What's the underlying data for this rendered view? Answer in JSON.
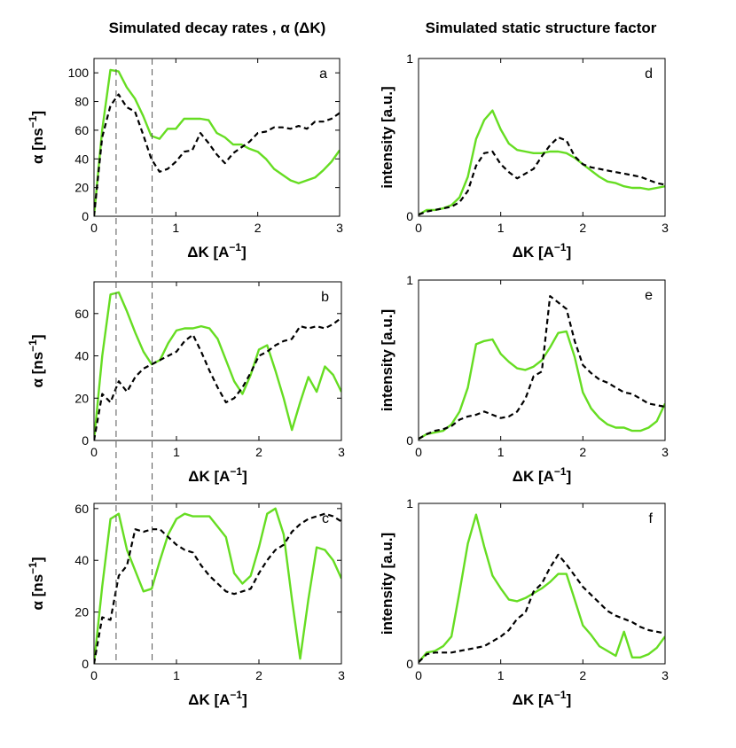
{
  "figure": {
    "left_title": "Simulated decay rates , α (ΔK)",
    "right_title": "Simulated static structure factor",
    "xlabel_prefix": "ΔK [A",
    "xlabel_sup": "−1",
    "xlabel_suffix": "]",
    "ylabel_alpha_prefix": "α [ns",
    "ylabel_alpha_sup": "−1",
    "ylabel_alpha_suffix": "]",
    "ylabel_intensity": "intensity [a.u.]",
    "colors": {
      "green": "#66dd22",
      "black": "#000000",
      "guide": "#555555"
    },
    "guide_lines_x": [
      0.27,
      0.71
    ]
  },
  "chart_data": [
    {
      "id": "a",
      "label": "a",
      "type": "line",
      "xlim": [
        0,
        3
      ],
      "ylim": [
        0,
        110
      ],
      "xticks": [
        0,
        1,
        2,
        3
      ],
      "xtick_labels": [
        "0",
        "1",
        "2",
        "3"
      ],
      "yticks": [
        0,
        20,
        40,
        60,
        80,
        100
      ],
      "ytick_labels": [
        "0",
        "20",
        "40",
        "60",
        "80",
        "100"
      ],
      "ylabel": "alpha",
      "series": [
        {
          "name": "green",
          "color": "#66dd22",
          "style": "solid",
          "x": [
            0,
            0.1,
            0.2,
            0.3,
            0.4,
            0.5,
            0.6,
            0.7,
            0.8,
            0.9,
            1.0,
            1.1,
            1.2,
            1.3,
            1.4,
            1.5,
            1.6,
            1.7,
            1.8,
            1.9,
            2.0,
            2.1,
            2.2,
            2.3,
            2.4,
            2.5,
            2.6,
            2.7,
            2.8,
            2.9,
            3.0
          ],
          "y": [
            0,
            60,
            102,
            101,
            90,
            82,
            70,
            56,
            54,
            61,
            61,
            68,
            68,
            68,
            67,
            58,
            55,
            50,
            50,
            47,
            45,
            40,
            33,
            29,
            25,
            23,
            25,
            27,
            32,
            38,
            46
          ]
        },
        {
          "name": "black",
          "color": "#000000",
          "style": "dashed",
          "x": [
            0,
            0.1,
            0.2,
            0.3,
            0.4,
            0.5,
            0.6,
            0.7,
            0.8,
            0.9,
            1.0,
            1.1,
            1.2,
            1.3,
            1.4,
            1.5,
            1.6,
            1.7,
            1.8,
            1.9,
            2.0,
            2.1,
            2.2,
            2.3,
            2.4,
            2.5,
            2.6,
            2.7,
            2.8,
            2.9,
            3.0
          ],
          "y": [
            0,
            55,
            77,
            85,
            76,
            73,
            57,
            40,
            31,
            33,
            38,
            45,
            46,
            58,
            51,
            43,
            37,
            44,
            48,
            52,
            58,
            59,
            62,
            62,
            61,
            63,
            61,
            66,
            66,
            68,
            72
          ]
        }
      ]
    },
    {
      "id": "b",
      "label": "b",
      "type": "line",
      "xlim": [
        0,
        3
      ],
      "ylim": [
        0,
        75
      ],
      "xticks": [
        0,
        1,
        2,
        3
      ],
      "xtick_labels": [
        "0",
        "1",
        "2",
        "3"
      ],
      "yticks": [
        0,
        20,
        40,
        60
      ],
      "ytick_labels": [
        "0",
        "20",
        "40",
        "60"
      ],
      "ylabel": "alpha",
      "series": [
        {
          "name": "green",
          "color": "#66dd22",
          "style": "solid",
          "x": [
            0,
            0.1,
            0.2,
            0.3,
            0.4,
            0.5,
            0.6,
            0.7,
            0.8,
            0.9,
            1.0,
            1.1,
            1.2,
            1.3,
            1.4,
            1.5,
            1.6,
            1.7,
            1.8,
            1.9,
            2.0,
            2.1,
            2.2,
            2.3,
            2.4,
            2.5,
            2.6,
            2.7,
            2.8,
            2.9,
            3.0
          ],
          "y": [
            0,
            40,
            69,
            70,
            61,
            51,
            42,
            36,
            38,
            46,
            52,
            53,
            53,
            54,
            53,
            48,
            38,
            28,
            22,
            31,
            43,
            45,
            33,
            20,
            5,
            18,
            30,
            23,
            35,
            31,
            23
          ]
        },
        {
          "name": "black",
          "color": "#000000",
          "style": "dashed",
          "x": [
            0,
            0.1,
            0.2,
            0.3,
            0.4,
            0.5,
            0.6,
            0.7,
            0.8,
            0.9,
            1.0,
            1.1,
            1.2,
            1.3,
            1.4,
            1.5,
            1.6,
            1.7,
            1.8,
            1.9,
            2.0,
            2.1,
            2.2,
            2.3,
            2.4,
            2.5,
            2.6,
            2.7,
            2.8,
            2.9,
            3.0
          ],
          "y": [
            0,
            22,
            18,
            28,
            23,
            30,
            34,
            36,
            38,
            40,
            42,
            47,
            50,
            42,
            33,
            25,
            18,
            20,
            25,
            32,
            40,
            42,
            45,
            47,
            48,
            54,
            53,
            54,
            53,
            55,
            58
          ]
        }
      ]
    },
    {
      "id": "c",
      "label": "c",
      "type": "line",
      "xlim": [
        0,
        3
      ],
      "ylim": [
        0,
        62
      ],
      "xticks": [
        0,
        1,
        2,
        3
      ],
      "xtick_labels": [
        "0",
        "1",
        "2",
        "3"
      ],
      "yticks": [
        0,
        20,
        40,
        60
      ],
      "ytick_labels": [
        "0",
        "20",
        "40",
        "60"
      ],
      "ylabel": "alpha",
      "series": [
        {
          "name": "green",
          "color": "#66dd22",
          "style": "solid",
          "x": [
            0,
            0.1,
            0.2,
            0.3,
            0.4,
            0.5,
            0.6,
            0.7,
            0.8,
            0.9,
            1.0,
            1.1,
            1.2,
            1.3,
            1.4,
            1.5,
            1.6,
            1.7,
            1.8,
            1.9,
            2.0,
            2.1,
            2.2,
            2.3,
            2.4,
            2.5,
            2.6,
            2.7,
            2.8,
            2.9,
            3.0
          ],
          "y": [
            0,
            30,
            56,
            58,
            44,
            36,
            28,
            29,
            40,
            50,
            56,
            58,
            57,
            57,
            57,
            53,
            49,
            35,
            31,
            34,
            45,
            58,
            60,
            50,
            25,
            2,
            25,
            45,
            44,
            40,
            33
          ]
        },
        {
          "name": "black",
          "color": "#000000",
          "style": "dashed",
          "x": [
            0,
            0.1,
            0.2,
            0.3,
            0.4,
            0.5,
            0.6,
            0.7,
            0.8,
            0.9,
            1.0,
            1.1,
            1.2,
            1.3,
            1.4,
            1.5,
            1.6,
            1.7,
            1.8,
            1.9,
            2.0,
            2.1,
            2.2,
            2.3,
            2.4,
            2.5,
            2.6,
            2.7,
            2.8,
            2.9,
            3.0
          ],
          "y": [
            0,
            18,
            17,
            34,
            38,
            52,
            51,
            52,
            52,
            49,
            46,
            44,
            43,
            38,
            34,
            31,
            28,
            27,
            28,
            29,
            35,
            40,
            44,
            46,
            51,
            54,
            56,
            57,
            58,
            57,
            55
          ]
        }
      ]
    },
    {
      "id": "d",
      "label": "d",
      "type": "line",
      "xlim": [
        0,
        3
      ],
      "ylim": [
        0,
        1
      ],
      "xticks": [
        0,
        1,
        2,
        3
      ],
      "xtick_labels": [
        "0",
        "1",
        "2",
        "3"
      ],
      "yticks": [
        0,
        1
      ],
      "ytick_labels": [
        "0",
        "1"
      ],
      "ylabel": "intensity",
      "series": [
        {
          "name": "green",
          "color": "#66dd22",
          "style": "solid",
          "x": [
            0,
            0.1,
            0.2,
            0.3,
            0.4,
            0.5,
            0.6,
            0.7,
            0.8,
            0.9,
            1.0,
            1.1,
            1.2,
            1.3,
            1.4,
            1.5,
            1.6,
            1.7,
            1.8,
            1.9,
            2.0,
            2.1,
            2.2,
            2.3,
            2.4,
            2.5,
            2.6,
            2.7,
            2.8,
            2.9,
            3.0
          ],
          "y": [
            0.01,
            0.04,
            0.04,
            0.05,
            0.07,
            0.12,
            0.25,
            0.49,
            0.61,
            0.67,
            0.55,
            0.46,
            0.42,
            0.41,
            0.4,
            0.4,
            0.41,
            0.41,
            0.4,
            0.37,
            0.33,
            0.29,
            0.25,
            0.22,
            0.21,
            0.19,
            0.18,
            0.18,
            0.17,
            0.18,
            0.19
          ]
        },
        {
          "name": "black",
          "color": "#000000",
          "style": "dashed",
          "x": [
            0,
            0.1,
            0.2,
            0.3,
            0.4,
            0.5,
            0.6,
            0.7,
            0.8,
            0.9,
            1.0,
            1.1,
            1.2,
            1.3,
            1.4,
            1.5,
            1.6,
            1.7,
            1.8,
            1.9,
            2.0,
            2.1,
            2.2,
            2.3,
            2.4,
            2.5,
            2.6,
            2.7,
            2.8,
            2.9,
            3.0
          ],
          "y": [
            0.01,
            0.03,
            0.04,
            0.05,
            0.06,
            0.09,
            0.16,
            0.32,
            0.4,
            0.41,
            0.33,
            0.28,
            0.24,
            0.27,
            0.3,
            0.38,
            0.45,
            0.5,
            0.48,
            0.38,
            0.33,
            0.31,
            0.3,
            0.29,
            0.28,
            0.27,
            0.26,
            0.25,
            0.23,
            0.21,
            0.2
          ]
        }
      ]
    },
    {
      "id": "e",
      "label": "e",
      "type": "line",
      "xlim": [
        0,
        3
      ],
      "ylim": [
        0,
        1
      ],
      "xticks": [
        0,
        1,
        2,
        3
      ],
      "xtick_labels": [
        "0",
        "1",
        "2",
        "3"
      ],
      "yticks": [
        0,
        1
      ],
      "ytick_labels": [
        "0",
        "1"
      ],
      "ylabel": "intensity",
      "series": [
        {
          "name": "green",
          "color": "#66dd22",
          "style": "solid",
          "x": [
            0,
            0.1,
            0.2,
            0.3,
            0.4,
            0.5,
            0.6,
            0.7,
            0.8,
            0.9,
            1.0,
            1.1,
            1.2,
            1.3,
            1.4,
            1.5,
            1.6,
            1.7,
            1.8,
            1.9,
            2.0,
            2.1,
            2.2,
            2.3,
            2.4,
            2.5,
            2.6,
            2.7,
            2.8,
            2.9,
            3.0
          ],
          "y": [
            0.01,
            0.04,
            0.05,
            0.06,
            0.1,
            0.18,
            0.33,
            0.6,
            0.62,
            0.63,
            0.54,
            0.49,
            0.45,
            0.44,
            0.46,
            0.5,
            0.58,
            0.67,
            0.68,
            0.52,
            0.3,
            0.2,
            0.14,
            0.1,
            0.08,
            0.08,
            0.06,
            0.06,
            0.08,
            0.12,
            0.23
          ]
        },
        {
          "name": "black",
          "color": "#000000",
          "style": "dashed",
          "x": [
            0,
            0.1,
            0.2,
            0.3,
            0.4,
            0.5,
            0.6,
            0.7,
            0.8,
            0.9,
            1.0,
            1.1,
            1.2,
            1.3,
            1.4,
            1.5,
            1.6,
            1.7,
            1.8,
            1.9,
            2.0,
            2.1,
            2.2,
            2.3,
            2.4,
            2.5,
            2.6,
            2.7,
            2.8,
            2.9,
            3.0
          ],
          "y": [
            0.01,
            0.04,
            0.06,
            0.07,
            0.09,
            0.13,
            0.15,
            0.16,
            0.18,
            0.16,
            0.14,
            0.15,
            0.18,
            0.26,
            0.4,
            0.43,
            0.9,
            0.86,
            0.82,
            0.62,
            0.47,
            0.42,
            0.38,
            0.36,
            0.33,
            0.3,
            0.29,
            0.26,
            0.23,
            0.22,
            0.21
          ]
        }
      ]
    },
    {
      "id": "f",
      "label": "f",
      "type": "line",
      "xlim": [
        0,
        3
      ],
      "ylim": [
        0,
        1
      ],
      "xticks": [
        0,
        1,
        2,
        3
      ],
      "xtick_labels": [
        "0",
        "1",
        "2",
        "3"
      ],
      "yticks": [
        0,
        1
      ],
      "ytick_labels": [
        "0",
        "1"
      ],
      "ylabel": "intensity",
      "series": [
        {
          "name": "green",
          "color": "#66dd22",
          "style": "solid",
          "x": [
            0,
            0.1,
            0.2,
            0.3,
            0.4,
            0.5,
            0.6,
            0.7,
            0.8,
            0.9,
            1.0,
            1.1,
            1.2,
            1.3,
            1.4,
            1.5,
            1.6,
            1.7,
            1.8,
            1.9,
            2.0,
            2.1,
            2.2,
            2.3,
            2.4,
            2.5,
            2.6,
            2.7,
            2.8,
            2.9,
            3.0
          ],
          "y": [
            0.01,
            0.07,
            0.08,
            0.11,
            0.17,
            0.45,
            0.75,
            0.93,
            0.73,
            0.55,
            0.47,
            0.4,
            0.39,
            0.41,
            0.44,
            0.47,
            0.51,
            0.56,
            0.56,
            0.4,
            0.24,
            0.18,
            0.11,
            0.08,
            0.05,
            0.2,
            0.04,
            0.04,
            0.06,
            0.1,
            0.17
          ]
        },
        {
          "name": "black",
          "color": "#000000",
          "style": "dashed",
          "x": [
            0,
            0.1,
            0.2,
            0.3,
            0.4,
            0.5,
            0.6,
            0.7,
            0.8,
            0.9,
            1.0,
            1.1,
            1.2,
            1.3,
            1.4,
            1.5,
            1.6,
            1.7,
            1.8,
            1.9,
            2.0,
            2.1,
            2.2,
            2.3,
            2.4,
            2.5,
            2.6,
            2.7,
            2.8,
            2.9,
            3.0
          ],
          "y": [
            0.01,
            0.06,
            0.07,
            0.07,
            0.07,
            0.08,
            0.09,
            0.1,
            0.11,
            0.14,
            0.17,
            0.21,
            0.28,
            0.32,
            0.45,
            0.5,
            0.6,
            0.68,
            0.62,
            0.55,
            0.48,
            0.43,
            0.38,
            0.33,
            0.3,
            0.28,
            0.26,
            0.23,
            0.21,
            0.2,
            0.19
          ]
        }
      ]
    }
  ]
}
